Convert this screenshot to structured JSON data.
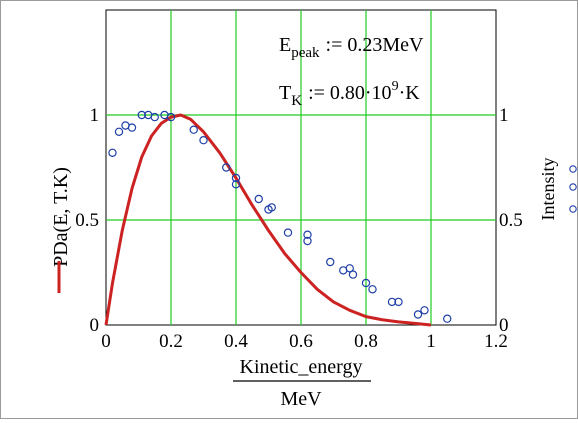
{
  "chart_data": {
    "type": "scatter",
    "xlabel_numerator": "Kinetic_energy",
    "xlabel_denominator": "MeV",
    "ylabel_left": "PDa(E, T.K)",
    "ylabel_right": "Intensity",
    "xlim": [
      0,
      1.2
    ],
    "ylim": [
      0,
      1.5
    ],
    "x_ticks": [
      "0",
      "0.2",
      "0.4",
      "0.6",
      "0.8",
      "1",
      "1.2"
    ],
    "y_ticks_left": [
      "0",
      "0.5",
      "1"
    ],
    "y_ticks_right": [
      "0",
      "0.5",
      "1"
    ],
    "grid": true,
    "annotations": {
      "epeak": {
        "symbol": "E",
        "sub": "peak",
        "rest": ":= 0.23MeV"
      },
      "tk": {
        "symbol": "T",
        "sub": "K",
        "mid": ":= 0.80·10",
        "sup": "9",
        "rest": "·K"
      }
    },
    "series": [
      {
        "kind": "line",
        "color": "#cc2222",
        "x": [
          0,
          0.02,
          0.05,
          0.08,
          0.11,
          0.14,
          0.17,
          0.2,
          0.23,
          0.26,
          0.3,
          0.35,
          0.4,
          0.45,
          0.5,
          0.55,
          0.6,
          0.65,
          0.7,
          0.75,
          0.8,
          0.85,
          0.9,
          0.95,
          1.0
        ],
        "y": [
          0,
          0.2,
          0.45,
          0.65,
          0.8,
          0.9,
          0.96,
          0.99,
          1.0,
          0.98,
          0.92,
          0.82,
          0.7,
          0.57,
          0.45,
          0.34,
          0.25,
          0.17,
          0.11,
          0.07,
          0.04,
          0.025,
          0.015,
          0.008,
          0.0
        ]
      },
      {
        "kind": "scatter",
        "color": "#1f3fa8",
        "x": [
          0.02,
          0.04,
          0.06,
          0.08,
          0.11,
          0.13,
          0.15,
          0.18,
          0.2,
          0.27,
          0.3,
          0.37,
          0.4,
          0.4,
          0.47,
          0.5,
          0.51,
          0.56,
          0.62,
          0.62,
          0.69,
          0.73,
          0.75,
          0.76,
          0.8,
          0.82,
          0.88,
          0.9,
          0.96,
          0.98,
          1.05
        ],
        "y": [
          0.82,
          0.92,
          0.95,
          0.94,
          1.0,
          1.0,
          0.99,
          1.0,
          0.99,
          0.93,
          0.88,
          0.75,
          0.7,
          0.67,
          0.6,
          0.55,
          0.56,
          0.44,
          0.43,
          0.4,
          0.3,
          0.26,
          0.27,
          0.24,
          0.2,
          0.17,
          0.11,
          0.11,
          0.05,
          0.07,
          0.03
        ]
      }
    ]
  },
  "right_legend": {
    "glyphs": [
      "o",
      "o",
      "o"
    ],
    "color": "#1f3fa8"
  }
}
